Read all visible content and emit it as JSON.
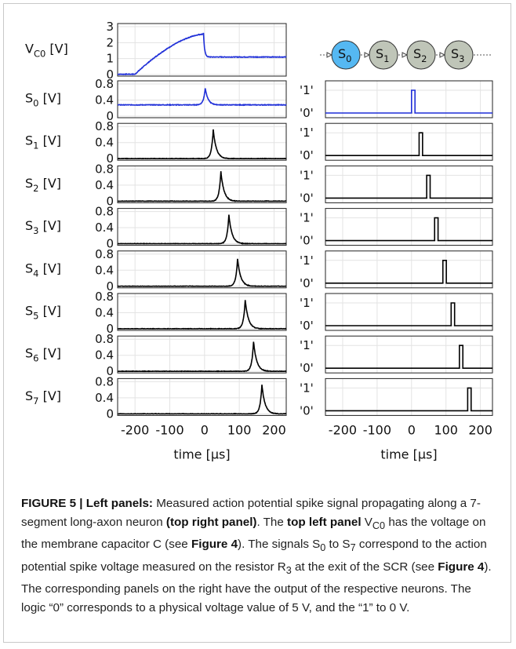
{
  "chart_data": {
    "type": "line",
    "xlabel": "time [μs]",
    "xlim": [
      -250,
      235
    ],
    "xticks": [
      -200,
      -100,
      0,
      100,
      200
    ],
    "xtick_labels": [
      "-200",
      "-100",
      "0",
      "100",
      "200"
    ],
    "grid": true,
    "left_panels": [
      {
        "label": "V",
        "sub": "C0",
        "unit": " [V]",
        "color": "#1f2fd8",
        "yticks": [
          0,
          1,
          2,
          3
        ],
        "ylim": [
          0,
          3
        ],
        "waveform": {
          "kind": "vc0",
          "rise_start": -200,
          "peak_time": -3,
          "peak": 2.62,
          "plateau": 1.1
        }
      },
      {
        "label": "S",
        "sub": "0",
        "unit": " [V]",
        "color": "#1f2fd8",
        "yticks": [
          0,
          0.4,
          0.8
        ],
        "ylim": [
          0,
          0.8
        ],
        "waveform": {
          "kind": "spike",
          "peak_time": 2,
          "peak": 0.7,
          "baseline": 0.28
        }
      },
      {
        "label": "S",
        "sub": "1",
        "unit": " [V]",
        "color": "#000000",
        "yticks": [
          0,
          0.4,
          0.8
        ],
        "ylim": [
          0,
          0.8
        ],
        "waveform": {
          "kind": "spike",
          "peak_time": 25,
          "peak": 0.72,
          "baseline": 0
        }
      },
      {
        "label": "S",
        "sub": "2",
        "unit": " [V]",
        "color": "#000000",
        "yticks": [
          0,
          0.4,
          0.8
        ],
        "ylim": [
          0,
          0.8
        ],
        "waveform": {
          "kind": "spike",
          "peak_time": 47,
          "peak": 0.74,
          "baseline": 0
        }
      },
      {
        "label": "S",
        "sub": "3",
        "unit": " [V]",
        "color": "#000000",
        "yticks": [
          0,
          0.4,
          0.8
        ],
        "ylim": [
          0,
          0.8
        ],
        "waveform": {
          "kind": "spike",
          "peak_time": 70,
          "peak": 0.72,
          "baseline": 0
        }
      },
      {
        "label": "S",
        "sub": "4",
        "unit": " [V]",
        "color": "#000000",
        "yticks": [
          0,
          0.4,
          0.8
        ],
        "ylim": [
          0,
          0.8
        ],
        "waveform": {
          "kind": "spike",
          "peak_time": 95,
          "peak": 0.68,
          "baseline": 0
        }
      },
      {
        "label": "S",
        "sub": "5",
        "unit": " [V]",
        "color": "#000000",
        "yticks": [
          0,
          0.4,
          0.8
        ],
        "ylim": [
          0,
          0.8
        ],
        "waveform": {
          "kind": "spike",
          "peak_time": 117,
          "peak": 0.72,
          "baseline": 0
        }
      },
      {
        "label": "S",
        "sub": "6",
        "unit": " [V]",
        "color": "#000000",
        "yticks": [
          0,
          0.4,
          0.8
        ],
        "ylim": [
          0,
          0.8
        ],
        "waveform": {
          "kind": "spike",
          "peak_time": 141,
          "peak": 0.74,
          "baseline": 0
        }
      },
      {
        "label": "S",
        "sub": "7",
        "unit": " [V]",
        "color": "#000000",
        "yticks": [
          0,
          0.4,
          0.8
        ],
        "ylim": [
          0,
          0.8
        ],
        "waveform": {
          "kind": "spike",
          "peak_time": 165,
          "peak": 0.72,
          "baseline": 0
        }
      }
    ],
    "right_panels": {
      "logic_labels": [
        "'1'",
        "'0'"
      ],
      "pulses": [
        {
          "start": 0,
          "end": 10,
          "color": "#1f2fd8"
        },
        {
          "start": 22,
          "end": 32,
          "color": "#000000"
        },
        {
          "start": 44,
          "end": 54,
          "color": "#000000"
        },
        {
          "start": 67,
          "end": 77,
          "color": "#000000"
        },
        {
          "start": 91,
          "end": 101,
          "color": "#000000"
        },
        {
          "start": 115,
          "end": 125,
          "color": "#000000"
        },
        {
          "start": 139,
          "end": 149,
          "color": "#000000"
        },
        {
          "start": 163,
          "end": 173,
          "color": "#000000"
        }
      ]
    },
    "chain": {
      "nodes": [
        {
          "label": "S",
          "sub": "0",
          "color": "#55b8f2"
        },
        {
          "label": "S",
          "sub": "1",
          "color": "#bfc5b8"
        },
        {
          "label": "S",
          "sub": "2",
          "color": "#bfc5b8"
        },
        {
          "label": "S",
          "sub": "3",
          "color": "#bfc5b8"
        }
      ]
    }
  },
  "caption": {
    "fig_label": "FIGURE 5 | Left panels:",
    "t1": " Measured action potential spike signal propagating along a 7-segment long-axon neuron ",
    "b1": "(top right panel)",
    "t2": ". The ",
    "b2": "top left panel",
    "t3": " V",
    "s1": "C0",
    "t4": " has the voltage on the membrane capacitor C (see ",
    "b3": "Figure 4",
    "t5": "). The signals S",
    "s2": "0",
    "t6": " to S",
    "s3": "7",
    "t7": " correspond to the action potential spike voltage measured on the resistor R",
    "s4": "3",
    "t8": " at the exit of the SCR (see ",
    "b4": "Figure 4",
    "t9": "). The corresponding panels on the right have the output of the respective neurons. The logic “0” corresponds to a physical voltage value of 5 V, and the “1” to 0 V."
  }
}
